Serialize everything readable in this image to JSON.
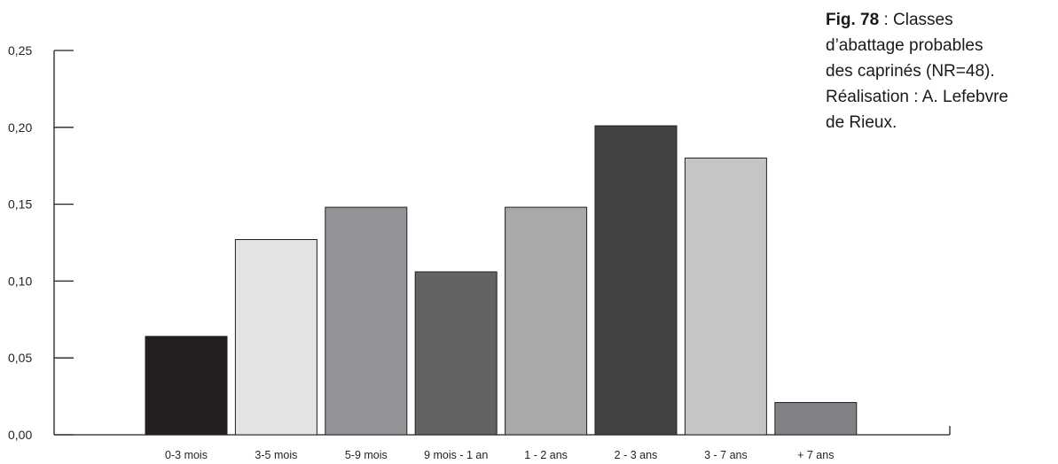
{
  "chart_data": {
    "type": "bar",
    "categories": [
      "0-3 mois",
      "3-5 mois",
      "5-9 mois",
      "9 mois - 1 an",
      "1 - 2 ans",
      "2 - 3 ans",
      "3 - 7 ans",
      "+ 7 ans"
    ],
    "values": [
      0.064,
      0.127,
      0.148,
      0.106,
      0.148,
      0.201,
      0.18,
      0.021
    ],
    "colors": [
      "#231f20",
      "#e2e3e4",
      "#929497",
      "#626365",
      "#a7a9ab",
      "#414244",
      "#c4c5c7",
      "#808184"
    ],
    "ylim": [
      0,
      0.25
    ],
    "yticks": [
      "0,00",
      "0,05",
      "0,10",
      "0,15",
      "0,20",
      "0,25"
    ],
    "grid": false
  },
  "caption": {
    "fig": "Fig. 78",
    "line1_rest": " : Classes",
    "line2": "d’abattage probables",
    "line3": "des caprinés (NR=48).",
    "line4": "Réalisation : A. Lefebvre",
    "line5": "de Rieux."
  }
}
